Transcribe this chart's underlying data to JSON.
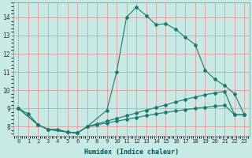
{
  "xlabel": "Humidex (Indice chaleur)",
  "bg_color": "#c8eae4",
  "grid_color": "#e88888",
  "line_color": "#1a7a6e",
  "xlim_min": -0.5,
  "xlim_max": 23.5,
  "ylim_min": 7.5,
  "ylim_max": 14.8,
  "xticks": [
    0,
    1,
    2,
    3,
    4,
    5,
    6,
    7,
    8,
    9,
    10,
    11,
    12,
    13,
    14,
    15,
    16,
    17,
    18,
    19,
    20,
    21,
    22,
    23
  ],
  "yticks": [
    8,
    9,
    10,
    11,
    12,
    13,
    14
  ],
  "line1_x": [
    0,
    1,
    2,
    3,
    4,
    5,
    6,
    7,
    9,
    10,
    11,
    12,
    13,
    14,
    15,
    16,
    17,
    18,
    19,
    20,
    21,
    22,
    23
  ],
  "line1_y": [
    9.0,
    8.7,
    8.1,
    7.85,
    7.85,
    7.7,
    7.65,
    8.0,
    8.9,
    11.0,
    14.0,
    14.55,
    14.1,
    13.6,
    13.65,
    13.35,
    12.9,
    12.5,
    11.1,
    10.6,
    10.25,
    9.8,
    8.65
  ],
  "line2_x": [
    0,
    2,
    3,
    5,
    6,
    7,
    8,
    9,
    10,
    11,
    12,
    13,
    14,
    15,
    16,
    17,
    18,
    19,
    20,
    21,
    22,
    23
  ],
  "line2_y": [
    9.0,
    8.1,
    7.85,
    7.7,
    7.65,
    8.0,
    8.15,
    8.3,
    8.45,
    8.6,
    8.75,
    8.9,
    9.05,
    9.2,
    9.35,
    9.5,
    9.62,
    9.75,
    9.85,
    9.93,
    8.65,
    8.65
  ],
  "line3_x": [
    0,
    2,
    3,
    5,
    6,
    7,
    8,
    9,
    10,
    11,
    12,
    13,
    14,
    15,
    16,
    17,
    18,
    19,
    20,
    21,
    22,
    23
  ],
  "line3_y": [
    9.0,
    8.1,
    7.85,
    7.7,
    7.65,
    8.0,
    8.1,
    8.2,
    8.3,
    8.4,
    8.5,
    8.6,
    8.7,
    8.78,
    8.86,
    8.93,
    9.0,
    9.06,
    9.12,
    9.17,
    8.65,
    8.65
  ],
  "markersize": 2.0,
  "linewidth": 0.8,
  "xlabel_fontsize": 6.0,
  "tick_fontsize": 5.2
}
